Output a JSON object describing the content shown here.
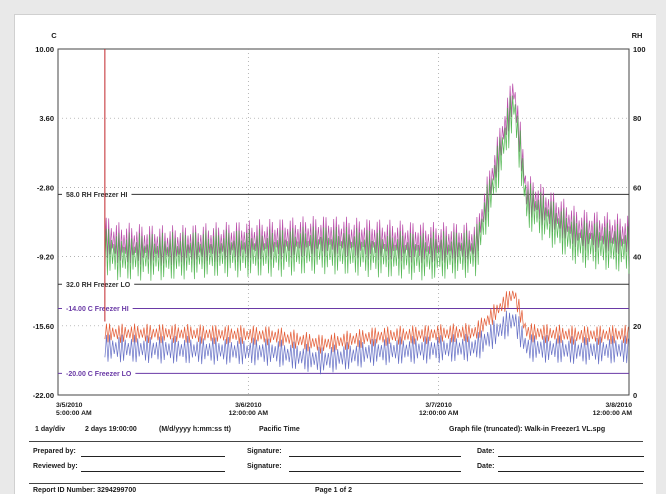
{
  "chart_data": {
    "type": "line",
    "title": "",
    "ylabel_left": "C",
    "ylabel_right": "RH",
    "y_left_ticks": [
      "10.00",
      "3.60",
      "-2.80",
      "-9.20",
      "-15.60",
      "-22.00"
    ],
    "y_left_range": [
      -22.0,
      10.0
    ],
    "y_right_ticks": [
      "100",
      "80",
      "60",
      "40",
      "20",
      "0"
    ],
    "y_right_range": [
      0,
      100
    ],
    "x_ticks": [
      {
        "date": "3/5/2010",
        "time": "5:00:00 AM"
      },
      {
        "date": "3/6/2010",
        "time": "12:00:00 AM"
      },
      {
        "date": "3/7/2010",
        "time": "12:00:00 AM"
      },
      {
        "date": "3/8/2010",
        "time": "12:00:00 AM"
      }
    ],
    "x_range": [
      "2010-03-05 05:00",
      "2010-03-08 00:00"
    ],
    "thresholds": [
      {
        "label": "58.0 RH Freezer HI",
        "axis": "right",
        "value": 58.0,
        "color": "#333333"
      },
      {
        "label": "32.0 RH Freezer LO",
        "axis": "right",
        "value": 32.0,
        "color": "#333333"
      },
      {
        "label": "-14.00 C Freezer HI",
        "axis": "left",
        "value": -14.0,
        "color": "#6a3aa6"
      },
      {
        "label": "-20.00 C Freezer LO",
        "axis": "left",
        "value": -20.0,
        "color": "#6a3aa6"
      }
    ],
    "series": [
      {
        "axis": "right",
        "color": "#b03aa0",
        "x": [
          "2010-03-05 10:30",
          "2010-03-05 12:00",
          "2010-03-05 18:00",
          "2010-03-06 00:00",
          "2010-03-06 06:00",
          "2010-03-06 12:00",
          "2010-03-06 18:00",
          "2010-03-07 00:00",
          "2010-03-07 06:00",
          "2010-03-07 10:30",
          "2010-03-07 12:00",
          "2010-03-07 18:00",
          "2010-03-08 00:00"
        ],
        "values": [
          46,
          44,
          43,
          44,
          45,
          46,
          45,
          44,
          44,
          88,
          58,
          48,
          46
        ]
      },
      {
        "axis": "right",
        "color": "#44b044",
        "x": [
          "2010-03-05 10:30",
          "2010-03-05 12:00",
          "2010-03-05 18:00",
          "2010-03-06 00:00",
          "2010-03-06 06:00",
          "2010-03-06 12:00",
          "2010-03-06 18:00",
          "2010-03-07 00:00",
          "2010-03-07 06:00",
          "2010-03-07 10:30",
          "2010-03-07 12:00",
          "2010-03-07 18:00",
          "2010-03-08 00:00"
        ],
        "values": [
          42,
          40,
          40,
          41,
          41,
          42,
          41,
          40,
          41,
          84,
          55,
          44,
          42
        ]
      },
      {
        "axis": "left",
        "color": "#e04a20",
        "x": [
          "2010-03-05 10:30",
          "2010-03-05 12:00",
          "2010-03-05 18:00",
          "2010-03-06 00:00",
          "2010-03-06 06:00",
          "2010-03-06 12:00",
          "2010-03-06 18:00",
          "2010-03-07 00:00",
          "2010-03-07 06:00",
          "2010-03-07 10:30",
          "2010-03-07 12:00",
          "2010-03-07 18:00",
          "2010-03-08 00:00"
        ],
        "values": [
          -16.2,
          -16.3,
          -16.3,
          -16.4,
          -16.5,
          -17.3,
          -16.6,
          -16.4,
          -16.2,
          -12.6,
          -16.2,
          -16.5,
          -16.4
        ]
      },
      {
        "axis": "left",
        "color": "#5560c0",
        "x": [
          "2010-03-05 10:30",
          "2010-03-05 12:00",
          "2010-03-05 18:00",
          "2010-03-06 00:00",
          "2010-03-06 06:00",
          "2010-03-06 12:00",
          "2010-03-06 18:00",
          "2010-03-07 00:00",
          "2010-03-07 06:00",
          "2010-03-07 10:30",
          "2010-03-07 12:00",
          "2010-03-07 18:00",
          "2010-03-08 00:00"
        ],
        "values": [
          -17.6,
          -17.7,
          -17.8,
          -17.9,
          -18.0,
          -18.8,
          -18.0,
          -17.8,
          -17.6,
          -15.0,
          -17.6,
          -17.9,
          -17.8
        ]
      }
    ],
    "grid": true
  },
  "footer": {
    "div_label": "1 day/div",
    "span_label": "2 days 19:00:00",
    "format_label": "(M/d/yyyy h:mm:ss tt)",
    "timezone_label": "Pacific Time",
    "graph_file": "Graph file (truncated): Walk-in Freezer1 VL.spg",
    "prepared_by": "Prepared by:",
    "reviewed_by": "Reviewed by:",
    "signature_1": "Signature:",
    "signature_2": "Signature:",
    "date_1": "Date:",
    "date_2": "Date:",
    "report_id": "Report ID Number: 3294299700",
    "page_label": "Page 1 of 2"
  }
}
